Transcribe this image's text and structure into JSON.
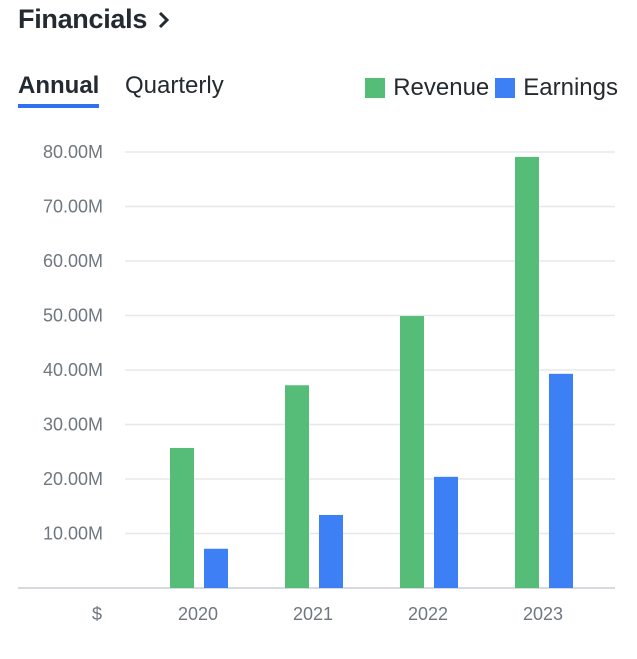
{
  "header": {
    "title": "Financials"
  },
  "tabs": [
    {
      "label": "Annual",
      "active": true
    },
    {
      "label": "Quarterly",
      "active": false
    }
  ],
  "legend": [
    {
      "label": "Revenue",
      "color": "#55bd78"
    },
    {
      "label": "Earnings",
      "color": "#3d7ff5"
    }
  ],
  "chart_data": {
    "type": "bar",
    "categories": [
      "2020",
      "2021",
      "2022",
      "2023"
    ],
    "series": [
      {
        "name": "Revenue",
        "color": "#55bd78",
        "values": [
          25.7,
          37.2,
          49.9,
          79.1
        ]
      },
      {
        "name": "Earnings",
        "color": "#3d7ff5",
        "values": [
          7.2,
          13.4,
          20.4,
          39.3
        ]
      }
    ],
    "yticks": [
      10,
      20,
      30,
      40,
      50,
      60,
      70,
      80
    ],
    "ytick_labels": [
      "10.00M",
      "20.00M",
      "30.00M",
      "40.00M",
      "50.00M",
      "60.00M",
      "70.00M",
      "80.00M"
    ],
    "ylim": [
      0,
      80
    ],
    "y_unit_label": "$",
    "grid": true,
    "legend_position": "top-right"
  }
}
